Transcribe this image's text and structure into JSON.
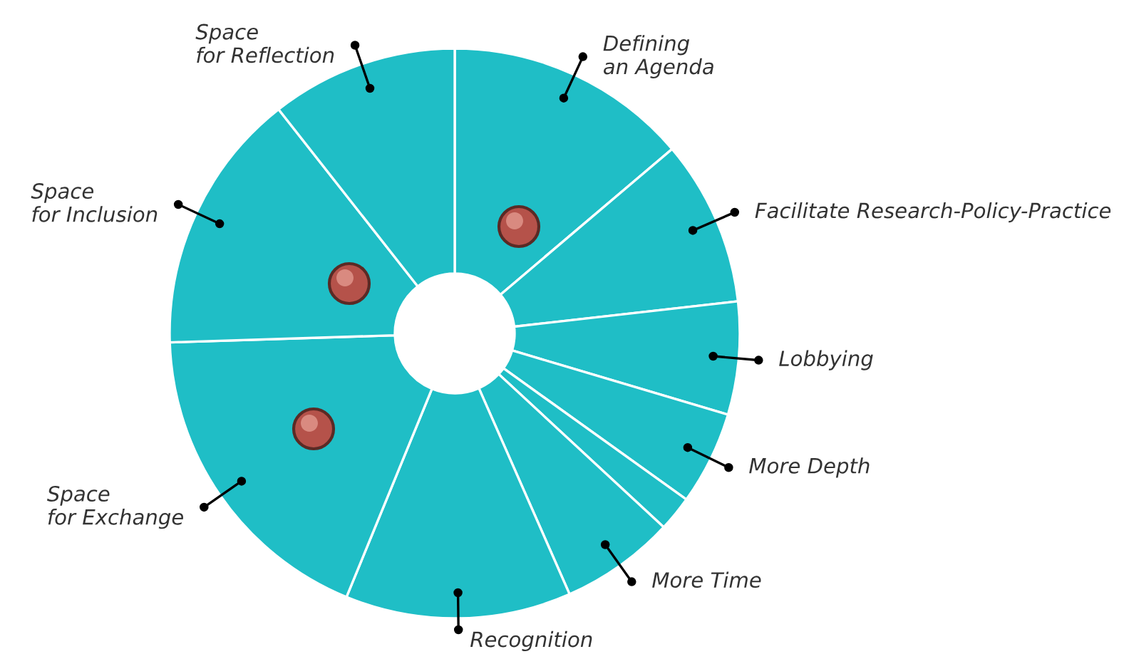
{
  "chart_data": {
    "type": "donut",
    "categories": [
      "Defining\nan Agenda",
      "Facilitate Research-Policy-Practice",
      "Lobbying",
      "More Depth",
      null,
      "More Time",
      "Recognition",
      "Space\nfor Exchange",
      "Space\nfor Inclusion",
      "Space\nfor Reflection"
    ],
    "values": [
      13.8,
      9.4,
      6.4,
      5.3,
      2.0,
      6.5,
      12.8,
      18.3,
      14.9,
      10.6
    ],
    "colors": [
      "#1fbec6",
      "#1fbec6",
      "#1fbec6",
      "#1fbec6",
      "#1fbec6",
      "#1fbec6",
      "#1fbec6",
      "#1fbec6",
      "#1fbec6",
      "#1fbec6"
    ],
    "legend": false
  }
}
